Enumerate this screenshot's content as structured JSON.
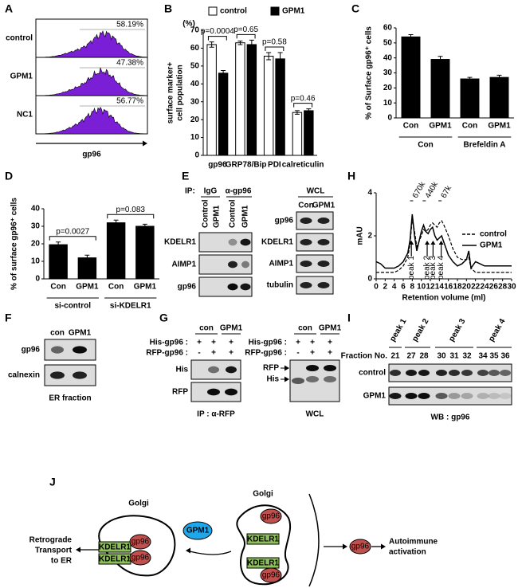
{
  "chart_data": [
    {
      "panel": "B",
      "type": "bar",
      "yunit": "(%)",
      "ylabel": [
        "surface marker+",
        "cell population"
      ],
      "categories": [
        "gp96",
        "GRP78/Bip",
        "PDI",
        "calreticulin"
      ],
      "series": [
        {
          "name": "control",
          "color": "#ffffff",
          "values": [
            62,
            63,
            55.5,
            24
          ],
          "errors": [
            1.5,
            1,
            2,
            1
          ]
        },
        {
          "name": "GPM1",
          "color": "#000000",
          "values": [
            46,
            62,
            54,
            25
          ],
          "errors": [
            1.5,
            2.5,
            3.5,
            1
          ]
        }
      ],
      "p_values": [
        "p=0.0004",
        "p=0.65",
        "p=0.58",
        "p=0.46"
      ],
      "ylim": [
        0,
        70
      ],
      "yticks": [
        0,
        10,
        20,
        30,
        40,
        50,
        60,
        70
      ],
      "legend": "top"
    },
    {
      "panel": "C",
      "type": "bar",
      "ylabel": [
        "% of Surface gp96⁺ cells"
      ],
      "categories": [
        "Con",
        "GPM1",
        "Con",
        "GPM1"
      ],
      "groups": [
        "Con",
        "Brefeldin A"
      ],
      "series": [
        {
          "color": "#000000",
          "values": [
            54,
            39,
            26,
            27
          ],
          "errors": [
            1.5,
            2,
            1,
            1.5
          ]
        }
      ],
      "ylim": [
        0,
        60
      ],
      "yticks": [
        0,
        10,
        20,
        30,
        40,
        50,
        60
      ]
    },
    {
      "panel": "D",
      "type": "bar",
      "ylabel": [
        "% of surface gp96⁺ cells"
      ],
      "categories": [
        "Con",
        "GPM1",
        "Con",
        "GPM1"
      ],
      "groups": [
        "si-control",
        "si-KDELR1"
      ],
      "series": [
        {
          "color": "#000000",
          "values": [
            19.5,
            12,
            32,
            30
          ],
          "errors": [
            1.5,
            1.5,
            1.5,
            1.2
          ]
        }
      ],
      "p_values": [
        "p=0.0027",
        "p=0.083"
      ],
      "ylim": [
        0,
        40
      ],
      "yticks": [
        0,
        10,
        20,
        30,
        40
      ]
    },
    {
      "panel": "H",
      "type": "line",
      "ylabel": "mAU",
      "xlabel": "Retention volume (ml)",
      "x": [
        0,
        1,
        2,
        3,
        4,
        5,
        6,
        7,
        7.5,
        8,
        8.5,
        9,
        10,
        10.5,
        11,
        11.5,
        12,
        12.5,
        13,
        13.5,
        14,
        14.5,
        15,
        16,
        17,
        18,
        19,
        20,
        20.5,
        21,
        22,
        23,
        24,
        25,
        26,
        27,
        28,
        29,
        30
      ],
      "series": [
        {
          "name": "control",
          "color": "#000000",
          "dash": true,
          "values": [
            0.3,
            0.3,
            0.3,
            0.3,
            0.3,
            0.4,
            0.6,
            1.0,
            1.6,
            2.8,
            2.2,
            1.5,
            2.0,
            2.3,
            2.2,
            2.3,
            2.5,
            2.6,
            2.5,
            2.4,
            2.6,
            2.7,
            2.5,
            2.0,
            1.4,
            1.0,
            0.9,
            0.9,
            1.0,
            0.5,
            0.3,
            0.3,
            0.3,
            0.3,
            0.3,
            0.3,
            0.3,
            0.3,
            0.3
          ]
        },
        {
          "name": "GPM1",
          "color": "#000000",
          "dash": false,
          "values": [
            0.8,
            0.7,
            0.5,
            0.5,
            0.5,
            0.6,
            0.8,
            1.2,
            1.8,
            3.0,
            2.0,
            1.3,
            2.2,
            2.5,
            2.2,
            2.1,
            2.3,
            2.4,
            2.0,
            1.8,
            1.9,
            2.0,
            1.7,
            1.1,
            0.8,
            0.6,
            0.7,
            0.9,
            1.3,
            0.5,
            0.8,
            0.7,
            0.6,
            0.6,
            0.6,
            0.6,
            0.6,
            0.6,
            0.6
          ]
        }
      ],
      "xlim": [
        0,
        30
      ],
      "xticks": [
        0,
        2,
        4,
        6,
        8,
        10,
        12,
        14,
        16,
        18,
        20,
        22,
        24,
        26,
        28,
        30
      ],
      "ylim": [
        0,
        4
      ],
      "yticks": [
        0,
        2,
        4
      ],
      "markers": [
        {
          "label": "670k",
          "x": 8.2
        },
        {
          "label": "440k",
          "x": 11
        },
        {
          "label": "67k",
          "x": 14.5
        }
      ],
      "peaks": [
        {
          "label": "peak 1",
          "x": 7.8
        },
        {
          "label": "peak 2",
          "x": 11.3
        },
        {
          "label": "peak 3",
          "x": 12.6
        },
        {
          "label": "peak 4",
          "x": 14.4
        }
      ],
      "legend": "right"
    }
  ],
  "figure": {
    "panel_a": {
      "letter": "A",
      "rows": [
        {
          "label": "control",
          "percent": "58.19%"
        },
        {
          "label": "GPM1",
          "percent": "47.38%"
        },
        {
          "label": "NC1",
          "percent": "56.77%"
        }
      ],
      "xlabel": "gp96"
    },
    "panel_e": {
      "letter": "E",
      "ip": "IP:",
      "ip_groups": [
        "IgG",
        "α-gp96"
      ],
      "ip_lanes": [
        "Control",
        "GPM1",
        "Control",
        "GPM1"
      ],
      "ip_rows": [
        "KDELR1",
        "AIMP1",
        "gp96"
      ],
      "wcl": "WCL",
      "wcl_lanes": [
        "Con",
        "GPM1"
      ],
      "wcl_rows": [
        "gp96",
        "KDELR1",
        "AIMP1",
        "tubulin"
      ]
    },
    "panel_f": {
      "letter": "F",
      "lanes": [
        "con",
        "GPM1"
      ],
      "rows": [
        "gp96",
        "calnexin"
      ],
      "caption": "ER fraction"
    },
    "panel_g": {
      "letter": "G",
      "blots": [
        {
          "groups": [
            "con",
            "GPM1"
          ],
          "conditions": [
            {
              "label": "His-gp96 :",
              "signs": [
                "+",
                "+",
                "+"
              ]
            },
            {
              "label": "RFP-gp96 :",
              "signs": [
                "-",
                "+",
                "+"
              ]
            }
          ],
          "rows": [
            "His",
            "RFP"
          ],
          "caption": "IP : α-RFP"
        },
        {
          "groups": [
            "con",
            "GPM1"
          ],
          "conditions": [
            {
              "label": "His-gp96 :",
              "signs": [
                "+",
                "+",
                "+"
              ]
            },
            {
              "label": "RFP-gp96 :",
              "signs": [
                "-",
                "+",
                "+"
              ]
            }
          ],
          "rows": [
            "RFP",
            "His"
          ],
          "caption": "WCL"
        }
      ]
    },
    "panel_i": {
      "letter": "I",
      "peaks": [
        "peak 1",
        "peak 2",
        "peak 3",
        "peak 4"
      ],
      "fraction_label": "Fraction No.",
      "fractions": [
        "21",
        "27",
        "28",
        "30",
        "31",
        "32",
        "34",
        "35",
        "36"
      ],
      "rows": [
        "control",
        "GPM1"
      ],
      "caption": "WB : gp96"
    },
    "panel_j": {
      "letter": "J",
      "golgi": [
        "Golgi",
        "Golgi"
      ],
      "gpm1": "GPM1",
      "gp96": [
        "gp96",
        "gp96",
        "gp96",
        "gp96",
        "gp96"
      ],
      "kdelr1": [
        "KDELR1",
        "KDELR1",
        "KDELR1",
        "KDELR1"
      ],
      "retrograde": [
        "Retrograde",
        "Transport",
        "to ER"
      ],
      "autoimmune": [
        "Autoimmune",
        "activation"
      ]
    }
  }
}
